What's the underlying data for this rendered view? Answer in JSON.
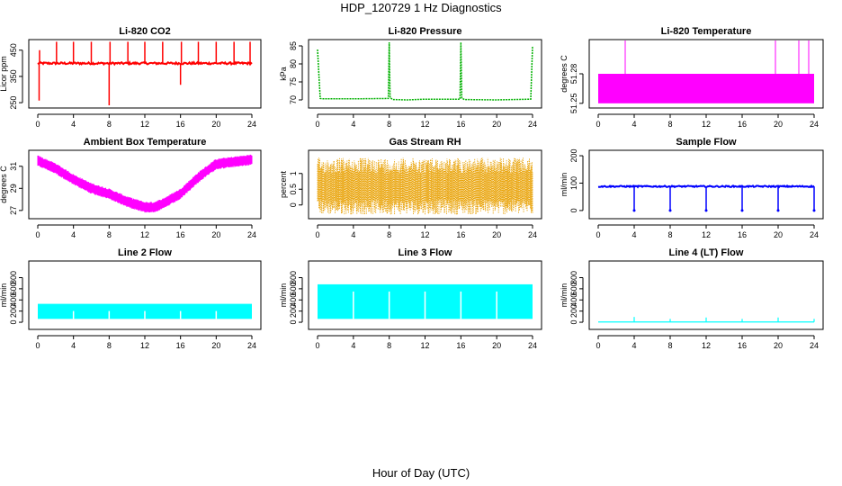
{
  "page": {
    "title": "HDP_120729  1 Hz Diagnostics",
    "xlabel": "Hour of Day (UTC)"
  },
  "chart_data": [
    {
      "type": "line",
      "title": "Li-820 CO2",
      "ylabel": "Licor ppm",
      "color": "#ff0000",
      "xlim": [
        0,
        24
      ],
      "ylim": [
        240,
        480
      ],
      "xticks": [
        0,
        4,
        8,
        12,
        16,
        20,
        24
      ],
      "yticks": [
        250,
        350,
        450
      ],
      "baseline": 400,
      "band": 8,
      "spikes": [
        {
          "x": 0.15,
          "y": 258
        },
        {
          "x": 0.2,
          "y": 450
        },
        {
          "x": 2.1,
          "y": 482
        },
        {
          "x": 4.0,
          "y": 482
        },
        {
          "x": 6.0,
          "y": 482
        },
        {
          "x": 8.0,
          "y": 240
        },
        {
          "x": 8.1,
          "y": 482
        },
        {
          "x": 10.1,
          "y": 482
        },
        {
          "x": 12.0,
          "y": 482
        },
        {
          "x": 14.0,
          "y": 482
        },
        {
          "x": 16.0,
          "y": 318
        },
        {
          "x": 16.1,
          "y": 482
        },
        {
          "x": 18.0,
          "y": 482
        },
        {
          "x": 20.0,
          "y": 482
        },
        {
          "x": 22.0,
          "y": 482
        },
        {
          "x": 23.8,
          "y": 482
        }
      ]
    },
    {
      "type": "line",
      "title": "Li-820 Pressure",
      "ylabel": "kPa",
      "color": "#00b000",
      "xlim": [
        0,
        24
      ],
      "ylim": [
        68.5,
        86
      ],
      "xticks": [
        0,
        4,
        8,
        12,
        16,
        20,
        24
      ],
      "yticks": [
        70,
        75,
        80,
        85
      ],
      "series": {
        "x": [
          0,
          0.15,
          0.3,
          0.5,
          4,
          7.9,
          8.0,
          8.1,
          8.4,
          10,
          12,
          15.9,
          16.0,
          16.1,
          16.4,
          20,
          23.8,
          24.0
        ],
        "y": [
          84,
          77,
          70.4,
          70.3,
          70.3,
          70.4,
          86,
          70.6,
          70.1,
          70.0,
          70.2,
          70.2,
          86,
          70.5,
          70.1,
          70.0,
          70.2,
          85
        ]
      }
    },
    {
      "type": "area",
      "title": "Li-820 Temperature",
      "ylabel": "degrees C",
      "color": "#ff00ff",
      "xlim": [
        0,
        24
      ],
      "ylim": [
        51.248,
        51.312
      ],
      "xticks": [
        0,
        4,
        8,
        12,
        16,
        20,
        24
      ],
      "yticks": [
        51.25,
        51.28
      ],
      "band": {
        "x0": 0,
        "x1": 24,
        "low": 51.25,
        "high": 51.28
      },
      "spikes": [
        3.0,
        19.7,
        22.3,
        23.4
      ]
    },
    {
      "type": "line",
      "title": "Ambient Box Temperature",
      "ylabel": "degrees C",
      "color": "#ff00ff",
      "xlim": [
        0,
        24
      ],
      "ylim": [
        26.5,
        32.2
      ],
      "xticks": [
        0,
        4,
        8,
        12,
        16,
        20,
        24
      ],
      "yticks": [
        27,
        29,
        31
      ],
      "series": {
        "x": [
          0,
          2,
          4,
          6,
          8,
          10,
          12,
          13,
          14,
          16,
          18,
          20,
          22,
          24
        ],
        "y": [
          31.5,
          30.8,
          29.8,
          29.0,
          28.5,
          27.8,
          27.3,
          27.3,
          27.6,
          28.5,
          30.0,
          31.2,
          31.4,
          31.6
        ]
      },
      "band": 0.35
    },
    {
      "type": "line",
      "title": "Gas Stream RH",
      "ylabel": "percent",
      "color": "#e8a000",
      "xlim": [
        0,
        24
      ],
      "ylim": [
        -0.35,
        1.65
      ],
      "xticks": [
        0,
        4,
        8,
        12,
        16,
        20,
        24
      ],
      "yticks": [
        0.0,
        0.5,
        1.0
      ],
      "range": [
        -0.3,
        1.5
      ]
    },
    {
      "type": "line",
      "title": "Sample Flow",
      "ylabel": "ml/min",
      "color": "#0000ff",
      "xlim": [
        0,
        24
      ],
      "ylim": [
        -20,
        210
      ],
      "xticks": [
        0,
        4,
        8,
        12,
        16,
        20,
        24
      ],
      "yticks": [
        0,
        100,
        200
      ],
      "baseline": 88,
      "band": 5,
      "dips": [
        4,
        8,
        12,
        16,
        20,
        24
      ]
    },
    {
      "type": "area",
      "title": "Line 2 Flow",
      "ylabel": "ml/min",
      "color": "#00ffff",
      "xlim": [
        0,
        24
      ],
      "ylim": [
        -80,
        1050
      ],
      "xticks": [
        0,
        4,
        8,
        12,
        16,
        20,
        24
      ],
      "yticks": [
        0,
        200,
        400,
        600,
        800
      ],
      "band": {
        "low": 60,
        "high": 330
      },
      "gaps": [
        4,
        8,
        12,
        16,
        20
      ]
    },
    {
      "type": "area",
      "title": "Line 3 Flow",
      "ylabel": "ml/min",
      "color": "#00ffff",
      "xlim": [
        0,
        24
      ],
      "ylim": [
        -80,
        1050
      ],
      "xticks": [
        0,
        4,
        8,
        12,
        16,
        20,
        24
      ],
      "yticks": [
        0,
        200,
        400,
        600,
        800
      ],
      "band": {
        "low": 60,
        "high": 680
      },
      "gaps": [
        4,
        8,
        12,
        16,
        20
      ]
    },
    {
      "type": "line",
      "title": "Line 4 (LT) Flow",
      "ylabel": "ml/min",
      "color": "#00ffff",
      "xlim": [
        0,
        24
      ],
      "ylim": [
        -80,
        1050
      ],
      "xticks": [
        0,
        4,
        8,
        12,
        16,
        20,
        24
      ],
      "yticks": [
        0,
        200,
        400,
        600,
        800
      ],
      "baseline": 5,
      "spikes": [
        {
          "x": 4,
          "y": 95
        },
        {
          "x": 8,
          "y": 60
        },
        {
          "x": 12,
          "y": 85
        },
        {
          "x": 16,
          "y": 60
        },
        {
          "x": 20,
          "y": 85
        },
        {
          "x": 24,
          "y": 60
        }
      ]
    }
  ]
}
